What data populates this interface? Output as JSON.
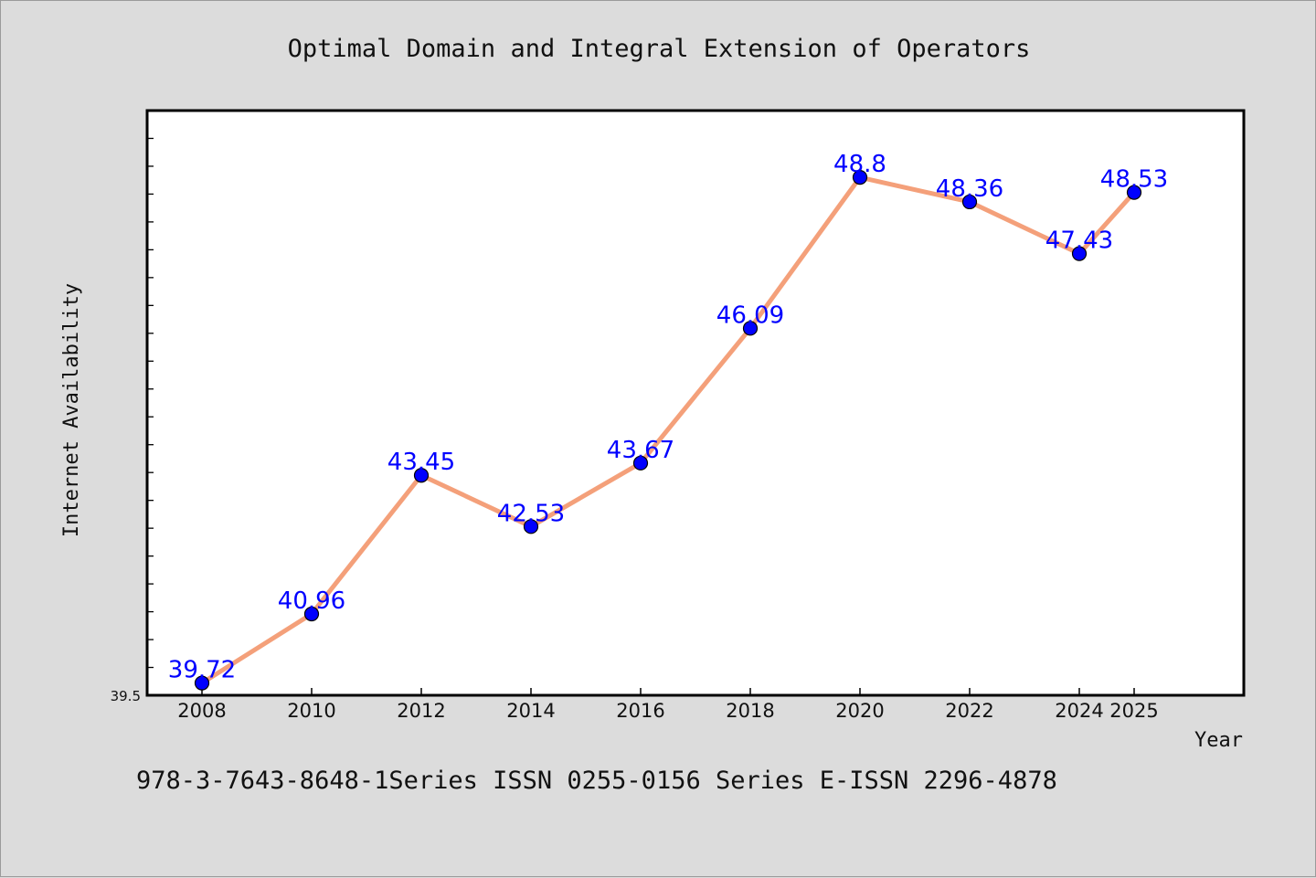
{
  "chart_data": {
    "type": "line",
    "title": "Optimal Domain and Integral Extension of Operators",
    "xlabel": "Year",
    "ylabel": "Internet Availability",
    "categories": [
      "2008",
      "2010",
      "2012",
      "2014",
      "2016",
      "2018",
      "2020",
      "2022",
      "2024",
      "2025"
    ],
    "series": [
      {
        "values": [
          39.72,
          40.96,
          43.45,
          42.53,
          43.67,
          46.09,
          48.8,
          48.36,
          47.43,
          48.53
        ],
        "labels": [
          "39.72",
          "40.96",
          "43.45",
          "42.53",
          "43.67",
          "46.09",
          "48.8",
          "48.36",
          "47.43",
          "48.53"
        ]
      }
    ],
    "ylim": [
      39.5,
      50.0
    ],
    "yticks_labeled": [
      "39.5"
    ],
    "grid": false,
    "legend": "none",
    "line_color": "#f4a07a",
    "marker_color": "#0000ff",
    "label_color": "#0000ff"
  },
  "footer": {
    "text": "978-3-7643-8648-1Series ISSN 0255-0156 Series E-ISSN 2296-4878"
  }
}
